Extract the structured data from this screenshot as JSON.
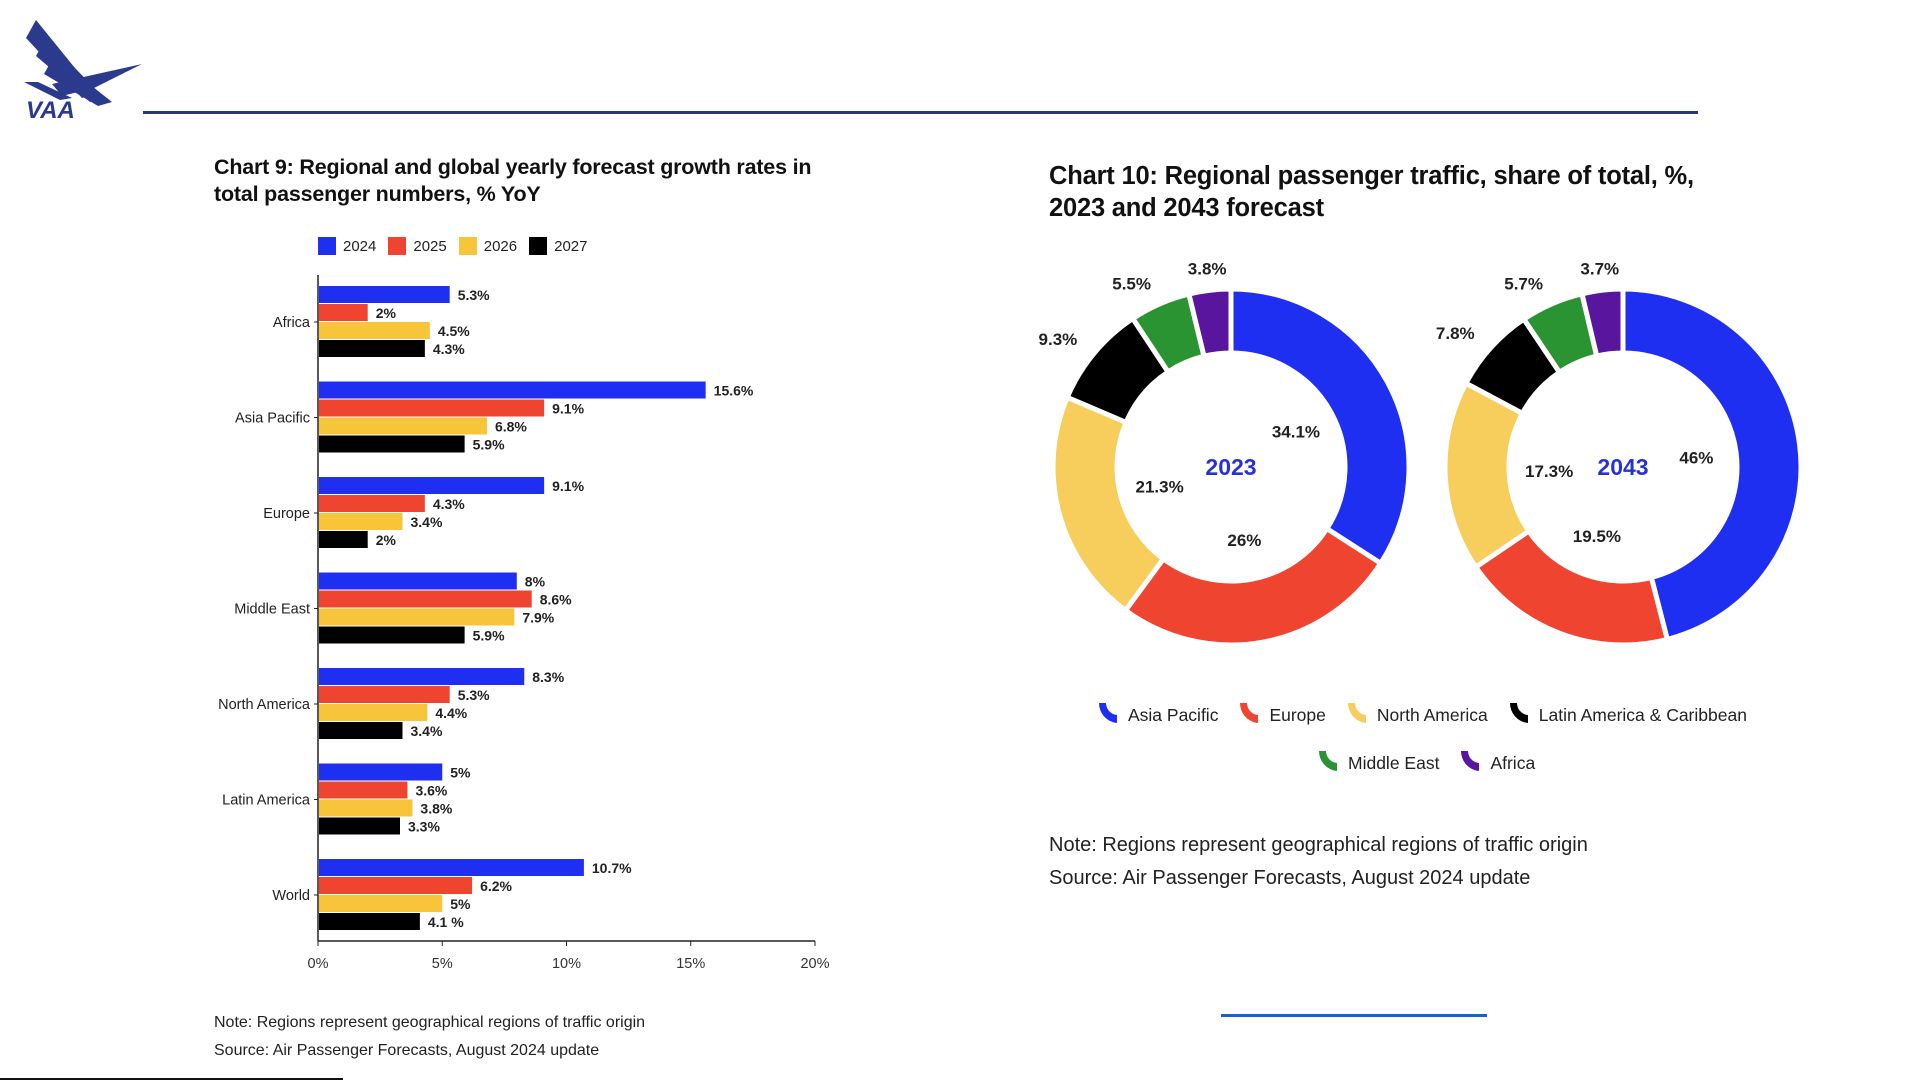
{
  "header": {
    "logo_text": "VAA",
    "rule_color": "#2e3573"
  },
  "colors": {
    "y2024": "#1f2ff2",
    "y2025": "#ee4430",
    "y2026": "#f8c43a",
    "y2027": "#000000",
    "asia_pacific": "#1f2ff2",
    "europe": "#ee4430",
    "north_america": "#f7cd5c",
    "latin_america": "#000000",
    "middle_east": "#2a9332",
    "africa": "#5a159e",
    "center_label": "#2632d8"
  },
  "chart9": {
    "note": "Note: Regions represent geographical regions of traffic origin",
    "source": "Source: Air Passenger Forecasts, August 2024 update"
  },
  "chart10": {
    "legend": [
      "Asia Pacific",
      "Europe",
      "North America",
      "Latin America & Caribbean",
      "Middle East",
      "Africa"
    ],
    "note": "Note: Regions represent geographical regions of traffic origin",
    "source": "Source: Air Passenger Forecasts, August 2024 update"
  },
  "chart_data": [
    {
      "type": "bar",
      "orientation": "horizontal",
      "title": "Chart 9: Regional and global yearly forecast growth rates in total passenger numbers, % YoY",
      "categories": [
        "Africa",
        "Asia Pacific",
        "Europe",
        "Middle East",
        "North America",
        "Latin America",
        "World"
      ],
      "series": [
        {
          "name": "2024",
          "values": [
            5.3,
            15.6,
            9.1,
            8.0,
            8.3,
            5.0,
            10.7
          ],
          "labels": [
            "5.3%",
            "15.6%",
            "9.1%",
            "8%",
            "8.3%",
            "5%",
            "10.7%"
          ]
        },
        {
          "name": "2025",
          "values": [
            2.0,
            9.1,
            4.3,
            8.6,
            5.3,
            3.6,
            6.2
          ],
          "labels": [
            "2%",
            "9.1%",
            "4.3%",
            "8.6%",
            "5.3%",
            "3.6%",
            "6.2%"
          ]
        },
        {
          "name": "2026",
          "values": [
            4.5,
            6.8,
            3.4,
            7.9,
            4.4,
            3.8,
            5.0
          ],
          "labels": [
            "4.5%",
            "6.8%",
            "3.4%",
            "7.9%",
            "4.4%",
            "3.8%",
            "5%"
          ]
        },
        {
          "name": "2027",
          "values": [
            4.3,
            5.9,
            2.0,
            5.9,
            3.4,
            3.3,
            4.1
          ],
          "labels": [
            "4.3%",
            "5.9%",
            "2%",
            "5.9%",
            "3.4%",
            "3.3%",
            "4.1 %"
          ]
        }
      ],
      "xlim": [
        0,
        20
      ],
      "xticks": [
        "0%",
        "5%",
        "10%",
        "15%",
        "20%"
      ],
      "xlabel": "",
      "ylabel": "",
      "legend_position": "top",
      "grid": false
    },
    {
      "type": "pie",
      "variant": "donut",
      "title": "Chart 10: Regional passenger traffic, share of total, %, 2023 and 2043 forecast",
      "categories": [
        "Asia Pacific",
        "Europe",
        "North America",
        "Latin America & Caribbean",
        "Middle East",
        "Africa"
      ],
      "series": [
        {
          "name": "2023",
          "values": [
            34.1,
            26.0,
            21.3,
            9.3,
            5.5,
            3.8
          ],
          "labels": [
            "34.1%",
            "26%",
            "21.3%",
            "9.3%",
            "5.5%",
            "3.8%"
          ]
        },
        {
          "name": "2043",
          "values": [
            46.0,
            19.5,
            17.3,
            7.8,
            5.7,
            3.7
          ],
          "labels": [
            "46%",
            "19.5%",
            "17.3%",
            "7.8%",
            "5.7%",
            "3.7%"
          ]
        }
      ],
      "legend_position": "bottom"
    }
  ]
}
